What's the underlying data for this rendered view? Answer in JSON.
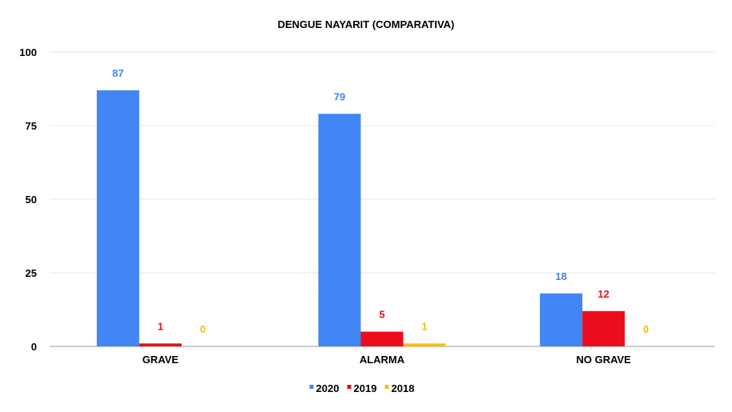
{
  "chart_data": {
    "type": "bar",
    "title": "DENGUE NAYARIT (COMPARATIVA)",
    "categories": [
      "GRAVE",
      "ALARMA",
      "NO GRAVE"
    ],
    "series": [
      {
        "name": "2020",
        "values": [
          87,
          79,
          18
        ],
        "color": "#4285f4"
      },
      {
        "name": "2019",
        "values": [
          1,
          5,
          12
        ],
        "color": "#ea0d1e"
      },
      {
        "name": "2018",
        "values": [
          0,
          1,
          0
        ],
        "color": "#fbbc04"
      }
    ],
    "ylim": [
      0,
      100
    ],
    "yticks": [
      0,
      25,
      50,
      75,
      100
    ],
    "grid": true,
    "legend": "bottom"
  }
}
